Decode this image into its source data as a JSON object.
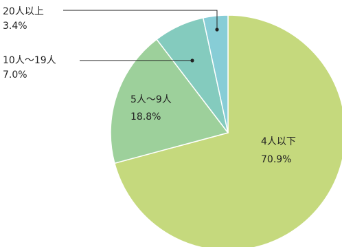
{
  "chart_data": {
    "type": "pie",
    "categories": [
      "4人以下",
      "5人〜9人",
      "10人〜19人",
      "20人以上"
    ],
    "values": [
      70.9,
      18.8,
      7.0,
      3.4
    ],
    "value_labels": [
      "70.9%",
      "18.8%",
      "7.0%",
      "3.4%"
    ],
    "start_angle_deg": 0,
    "direction": "clockwise",
    "colors": [
      "#c5d97d",
      "#9dd09b",
      "#84cbbe",
      "#87cdd6"
    ],
    "slice_border_color": "#ffffff",
    "callout_line_color": "#222222"
  }
}
